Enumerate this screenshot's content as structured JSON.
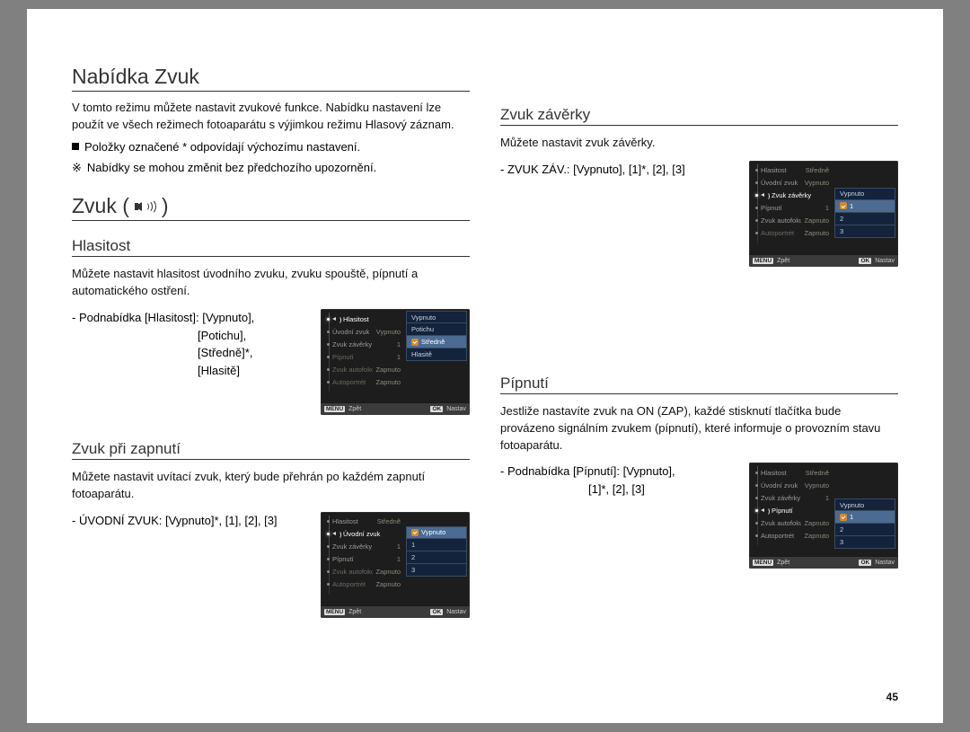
{
  "page_number": "45",
  "colors": {
    "page_bg": "#ffffff",
    "outer_bg": "#808080",
    "text": "#111111",
    "rule": "#333333",
    "lcd_bg": "#1d1d1d",
    "lcd_panel": "#13233c",
    "lcd_panel_sel": "#4b6b92",
    "lcd_border": "#394b5f",
    "lcd_check": "#d48a2a"
  },
  "headings": {
    "main": "Nabídka Zvuk",
    "zvuk": "Zvuk (",
    "zvuk_close": ")",
    "hlasitost": "Hlasitost",
    "pri_zapnuti": "Zvuk při zapnutí",
    "zaverky": "Zvuk závěrky",
    "pipnuti": "Pípnutí"
  },
  "intro": {
    "p1": "V tomto režimu můžete nastavit zvukové funkce. Nabídku nastavení lze použít ve všech režimech fotoaparátu s výjimkou režimu Hlasový záznam.",
    "b1": "Položky označené * odpovídají výchozímu nastavení.",
    "b2": "Nabídky se mohou změnit bez předchozího upozornění."
  },
  "hlasitost": {
    "desc": "Můžete nastavit hlasitost úvodního zvuku, zvuku spouště, pípnutí a automatického ostření.",
    "line1": "- Podnabídka [Hlasitost]: [Vypnuto],",
    "line2": "[Potichu],",
    "line3": "[Středně]*,",
    "line4": "[Hlasitě]"
  },
  "pri_zapnuti": {
    "desc": "Můžete nastavit uvítací zvuk, který bude přehrán po každém zapnutí fotoaparátu.",
    "line": "- ÚVODNÍ ZVUK: [Vypnuto]*, [1], [2], [3]"
  },
  "zaverky": {
    "desc": "Můžete nastavit zvuk závěrky.",
    "line": "- ZVUK ZÁV.: [Vypnuto], [1]*, [2], [3]"
  },
  "pipnuti": {
    "desc": "Jestliže nastavíte zvuk na ON (ZAP), každé stisknutí tlačítka bude provázeno signálním zvukem (pípnutí), které informuje o provozním stavu fotoaparátu.",
    "line1": "- Podnabídka [Pípnutí]: [Vypnuto],",
    "line2": "[1]*, [2], [3]"
  },
  "lcd_common": {
    "menu_items": [
      "Hlasitost",
      "Úvodní zvuk",
      "Zvuk závěrky",
      "Pípnutí",
      "Zvuk autofokusu",
      "Autoportrét"
    ],
    "right_values": {
      "Hlasitost": "Středně",
      "Úvodní zvuk": "Vypnuto",
      "Zvuk závěrky": "1",
      "Pípnutí": "1",
      "Zvuk autofokusu": "Zapnuto",
      "Autoportrét": "Zapnuto"
    },
    "foot_back_tag": "MENU",
    "foot_back": "Zpět",
    "foot_ok_tag": "OK",
    "foot_ok": "Nastav"
  },
  "lcd_hlasitost": {
    "highlight_index": 0,
    "options": [
      "Vypnuto",
      "Potichu",
      "Středně",
      "Hlasitě"
    ],
    "selected_index": 2
  },
  "lcd_uvodni": {
    "highlight_index": 1,
    "options": [
      "Vypnuto",
      "1",
      "2",
      "3"
    ],
    "selected_index": 0
  },
  "lcd_zaverky": {
    "highlight_index": 2,
    "options": [
      "Vypnuto",
      "1",
      "2",
      "3"
    ],
    "selected_index": 1
  },
  "lcd_pipnuti": {
    "highlight_index": 3,
    "options": [
      "Vypnuto",
      "1",
      "2",
      "3"
    ],
    "selected_index": 1
  }
}
